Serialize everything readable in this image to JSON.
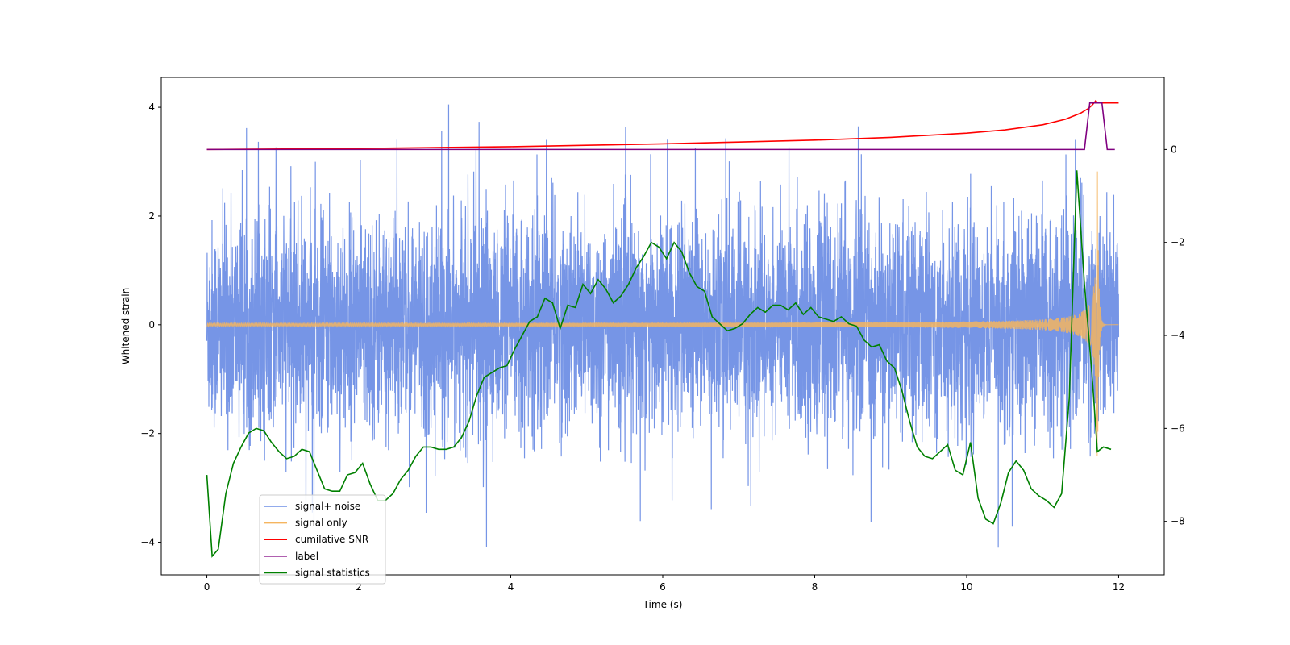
{
  "chart_data": {
    "type": "line",
    "title": "",
    "xlabel": "Time (s)",
    "ylabel": "Whitened strain",
    "y2label": "",
    "xlim": [
      -0.6,
      12.6
    ],
    "ylim": [
      -4.6,
      4.55
    ],
    "y2lim": [
      -9.15,
      1.55
    ],
    "xticks": [
      0,
      2,
      4,
      6,
      8,
      10,
      12
    ],
    "yticks": [
      -4,
      -2,
      0,
      2,
      4
    ],
    "y2ticks": [
      -8,
      -6,
      -4,
      -2,
      0
    ],
    "grid": false,
    "legend_position": "lower-left",
    "colors": {
      "noise": "#6f8fe5",
      "signal": "#f5b55f",
      "snr": "#ff0000",
      "label": "#800080",
      "stat": "#008000"
    },
    "series": [
      {
        "name": "signal+ noise",
        "axis": "left",
        "description_values": "dense noise, amplitude about ±2.5 with spikes to ±4.1",
        "x_range": [
          0,
          12
        ],
        "amplitude": 2.5,
        "max_peak": 4.1
      },
      {
        "name": "signal only",
        "axis": "left",
        "x_range": [
          0,
          12
        ],
        "chirp_peak_time": 11.72,
        "peak_amplitude": 3.0
      },
      {
        "name": "cumilative SNR",
        "axis": "right",
        "x": [
          0,
          1,
          2,
          3,
          4,
          5,
          6,
          7,
          8,
          9,
          10,
          10.5,
          11,
          11.3,
          11.5,
          11.6,
          11.65,
          11.7,
          11.72,
          11.75,
          12
        ],
        "y": [
          0.0,
          0.01,
          0.02,
          0.04,
          0.06,
          0.09,
          0.12,
          0.16,
          0.2,
          0.26,
          0.35,
          0.42,
          0.53,
          0.65,
          0.78,
          0.88,
          0.95,
          1.05,
          1.0,
          1.0,
          1.0
        ]
      },
      {
        "name": "label",
        "axis": "right",
        "x": [
          0,
          11.55,
          11.62,
          11.78,
          11.85,
          11.95
        ],
        "y": [
          0,
          0,
          1.0,
          1.0,
          0,
          0
        ]
      },
      {
        "name": "signal statistics",
        "axis": "right",
        "x": [
          0,
          0.07,
          0.15,
          0.25,
          0.35,
          0.45,
          0.55,
          0.65,
          0.75,
          0.85,
          0.95,
          1.05,
          1.15,
          1.25,
          1.35,
          1.45,
          1.55,
          1.65,
          1.75,
          1.85,
          1.95,
          2.05,
          2.15,
          2.25,
          2.35,
          2.45,
          2.55,
          2.65,
          2.75,
          2.85,
          2.95,
          3.05,
          3.15,
          3.25,
          3.35,
          3.45,
          3.55,
          3.65,
          3.75,
          3.85,
          3.95,
          4.05,
          4.15,
          4.25,
          4.35,
          4.45,
          4.55,
          4.65,
          4.75,
          4.85,
          4.95,
          5.05,
          5.15,
          5.25,
          5.35,
          5.45,
          5.55,
          5.65,
          5.75,
          5.85,
          5.95,
          6.05,
          6.15,
          6.25,
          6.35,
          6.45,
          6.55,
          6.65,
          6.75,
          6.85,
          6.95,
          7.05,
          7.15,
          7.25,
          7.35,
          7.45,
          7.55,
          7.65,
          7.75,
          7.85,
          7.95,
          8.05,
          8.15,
          8.25,
          8.35,
          8.45,
          8.55,
          8.65,
          8.75,
          8.85,
          8.95,
          9.05,
          9.15,
          9.25,
          9.35,
          9.45,
          9.55,
          9.65,
          9.75,
          9.85,
          9.95,
          10.05,
          10.15,
          10.25,
          10.35,
          10.45,
          10.55,
          10.65,
          10.75,
          10.85,
          10.95,
          11.05,
          11.15,
          11.25,
          11.35,
          11.45,
          11.55,
          11.65,
          11.72,
          11.8,
          11.9
        ],
        "y": [
          -7.0,
          -8.75,
          -8.6,
          -7.4,
          -6.75,
          -6.4,
          -6.1,
          -6.0,
          -6.05,
          -6.3,
          -6.5,
          -6.65,
          -6.6,
          -6.45,
          -6.5,
          -6.9,
          -7.3,
          -7.35,
          -7.35,
          -7.0,
          -6.95,
          -6.75,
          -7.2,
          -7.55,
          -7.55,
          -7.4,
          -7.1,
          -6.9,
          -6.6,
          -6.4,
          -6.4,
          -6.45,
          -6.45,
          -6.4,
          -6.2,
          -5.85,
          -5.3,
          -4.9,
          -4.8,
          -4.7,
          -4.65,
          -4.3,
          -4.0,
          -3.7,
          -3.6,
          -3.2,
          -3.3,
          -3.85,
          -3.35,
          -3.4,
          -2.9,
          -3.1,
          -2.8,
          -3.0,
          -3.3,
          -3.15,
          -2.9,
          -2.55,
          -2.3,
          -2.0,
          -2.1,
          -2.35,
          -2.0,
          -2.2,
          -2.65,
          -2.95,
          -3.05,
          -3.6,
          -3.75,
          -3.9,
          -3.85,
          -3.75,
          -3.55,
          -3.4,
          -3.5,
          -3.35,
          -3.35,
          -3.45,
          -3.3,
          -3.55,
          -3.4,
          -3.6,
          -3.65,
          -3.7,
          -3.6,
          -3.75,
          -3.8,
          -4.1,
          -4.25,
          -4.2,
          -4.55,
          -4.7,
          -5.2,
          -5.85,
          -6.4,
          -6.6,
          -6.65,
          -6.5,
          -6.35,
          -6.9,
          -7.0,
          -6.3,
          -7.5,
          -7.95,
          -8.05,
          -7.6,
          -6.95,
          -6.7,
          -6.9,
          -7.3,
          -7.45,
          -7.55,
          -7.7,
          -7.4,
          -5.35,
          -0.45,
          -2.9,
          -4.85,
          -6.5,
          -6.4,
          -6.45
        ]
      }
    ]
  }
}
